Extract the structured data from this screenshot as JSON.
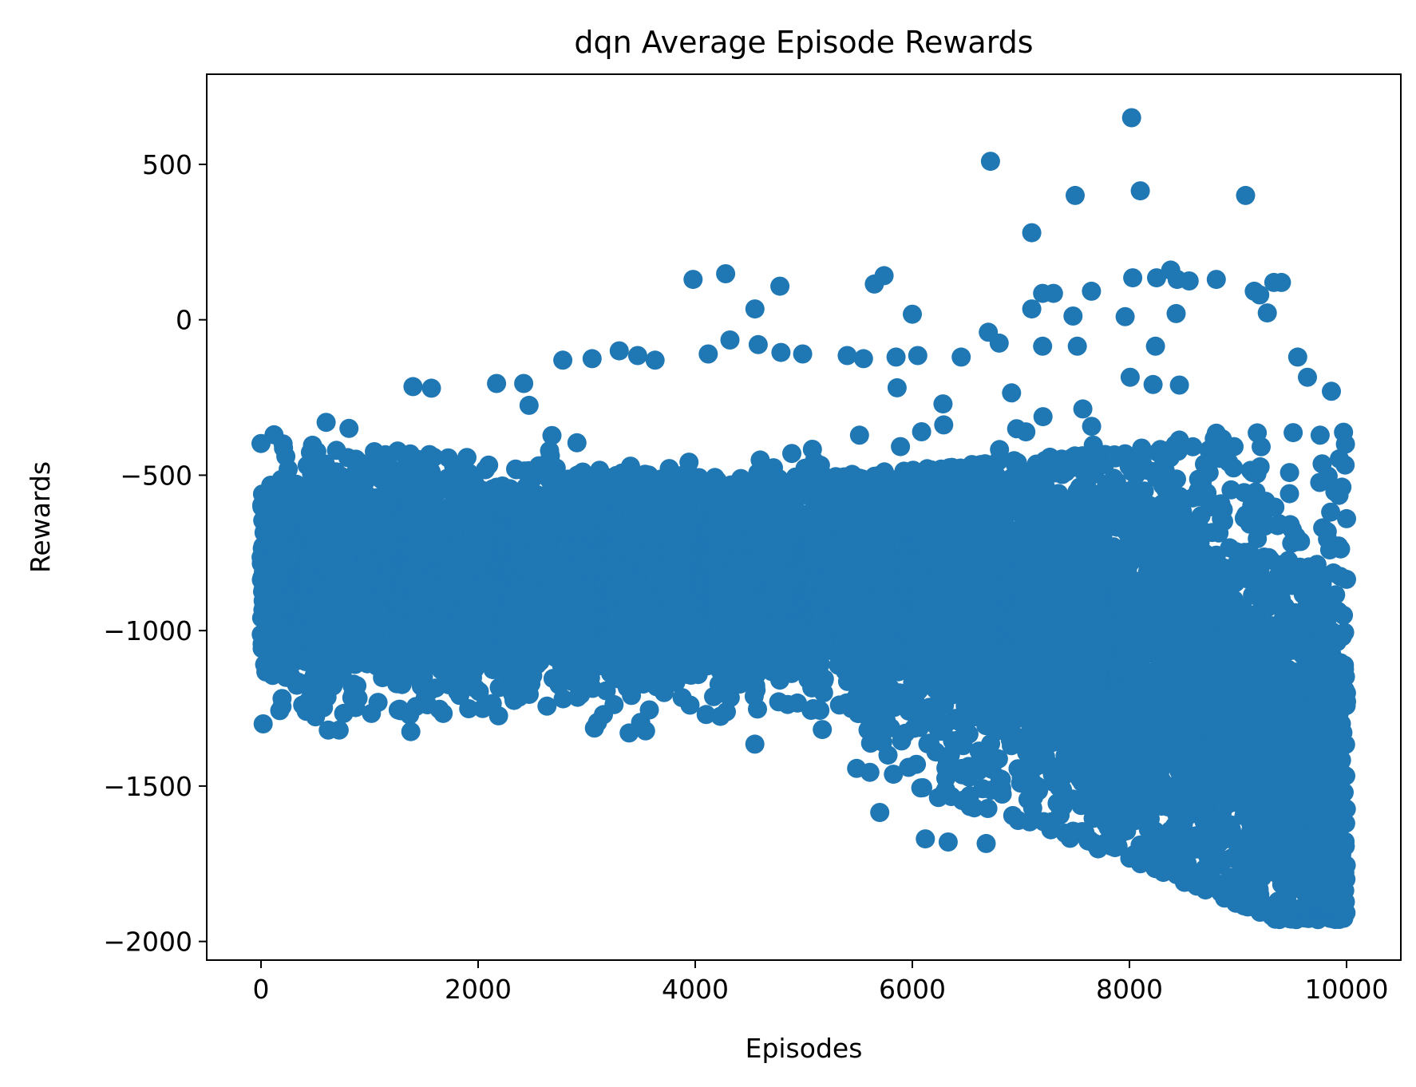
{
  "chart_data": {
    "type": "scatter",
    "title": "dqn Average Episode Rewards",
    "xlabel": "Episodes",
    "ylabel": "Rewards",
    "xlim": [
      -500,
      10500
    ],
    "ylim": [
      -2060,
      790
    ],
    "x_ticks": [
      0,
      2000,
      4000,
      6000,
      8000,
      10000
    ],
    "x_tick_labels": [
      "0",
      "2000",
      "4000",
      "6000",
      "8000",
      "10000"
    ],
    "y_ticks": [
      500,
      0,
      -500,
      -1000,
      -1500,
      -2000
    ],
    "y_tick_labels": [
      "500",
      "0",
      "−500",
      "−1000",
      "−1500",
      "−2000"
    ],
    "grid": false,
    "marker_color": "#1f77b4",
    "n_points": 10000,
    "outliers": [
      {
        "x": 8020,
        "y": 650
      },
      {
        "x": 6720,
        "y": 510
      },
      {
        "x": 7500,
        "y": 400
      },
      {
        "x": 8100,
        "y": 415
      },
      {
        "x": 9070,
        "y": 400
      },
      {
        "x": 7100,
        "y": 280
      },
      {
        "x": 3980,
        "y": 130
      },
      {
        "x": 4280,
        "y": 148
      },
      {
        "x": 4780,
        "y": 108
      },
      {
        "x": 4550,
        "y": 35
      },
      {
        "x": 5650,
        "y": 115
      },
      {
        "x": 5740,
        "y": 142
      },
      {
        "x": 6000,
        "y": 18
      },
      {
        "x": 7200,
        "y": 85
      },
      {
        "x": 7300,
        "y": 85
      },
      {
        "x": 7100,
        "y": 35
      },
      {
        "x": 7480,
        "y": 12
      },
      {
        "x": 7650,
        "y": 92
      },
      {
        "x": 7960,
        "y": 10
      },
      {
        "x": 8030,
        "y": 135
      },
      {
        "x": 8250,
        "y": 135
      },
      {
        "x": 8380,
        "y": 160
      },
      {
        "x": 8440,
        "y": 130
      },
      {
        "x": 8550,
        "y": 125
      },
      {
        "x": 8800,
        "y": 130
      },
      {
        "x": 9150,
        "y": 92
      },
      {
        "x": 9200,
        "y": 80
      },
      {
        "x": 9270,
        "y": 22
      },
      {
        "x": 9330,
        "y": 120
      },
      {
        "x": 9400,
        "y": 120
      },
      {
        "x": 8430,
        "y": 20
      },
      {
        "x": 6700,
        "y": -40
      },
      {
        "x": 6800,
        "y": -75
      },
      {
        "x": 7200,
        "y": -85
      },
      {
        "x": 7520,
        "y": -85
      },
      {
        "x": 8240,
        "y": -85
      },
      {
        "x": 9550,
        "y": -120
      },
      {
        "x": 3300,
        "y": -100
      },
      {
        "x": 3470,
        "y": -115
      },
      {
        "x": 3630,
        "y": -130
      },
      {
        "x": 4120,
        "y": -110
      },
      {
        "x": 4320,
        "y": -65
      },
      {
        "x": 4580,
        "y": -80
      },
      {
        "x": 4790,
        "y": -105
      },
      {
        "x": 4990,
        "y": -110
      },
      {
        "x": 2780,
        "y": -130
      },
      {
        "x": 3050,
        "y": -125
      },
      {
        "x": 5400,
        "y": -115
      },
      {
        "x": 5550,
        "y": -125
      },
      {
        "x": 5850,
        "y": -120
      },
      {
        "x": 6050,
        "y": -115
      },
      {
        "x": 6450,
        "y": -120
      },
      {
        "x": 1380,
        "y": -1325
      },
      {
        "x": 620,
        "y": -1320
      },
      {
        "x": 720,
        "y": -1320
      },
      {
        "x": 20,
        "y": -1300
      },
      {
        "x": 3100,
        "y": -1295
      },
      {
        "x": 6120,
        "y": -1670
      },
      {
        "x": 6330,
        "y": -1680
      },
      {
        "x": 6680,
        "y": -1685
      },
      {
        "x": 5700,
        "y": -1585
      },
      {
        "x": 9860,
        "y": -230
      },
      {
        "x": 9640,
        "y": -185
      },
      {
        "x": 8460,
        "y": -210
      },
      {
        "x": 8800,
        "y": -365
      },
      {
        "x": 9990,
        "y": -400
      },
      {
        "x": 9930,
        "y": -565
      },
      {
        "x": 10000,
        "y": -640
      },
      {
        "x": 10000,
        "y": -835
      },
      {
        "x": 120,
        "y": -370
      },
      {
        "x": 600,
        "y": -330
      },
      {
        "x": 1400,
        "y": -215
      },
      {
        "x": 1570,
        "y": -220
      },
      {
        "x": 2170,
        "y": -205
      },
      {
        "x": 2420,
        "y": -205
      }
    ]
  }
}
